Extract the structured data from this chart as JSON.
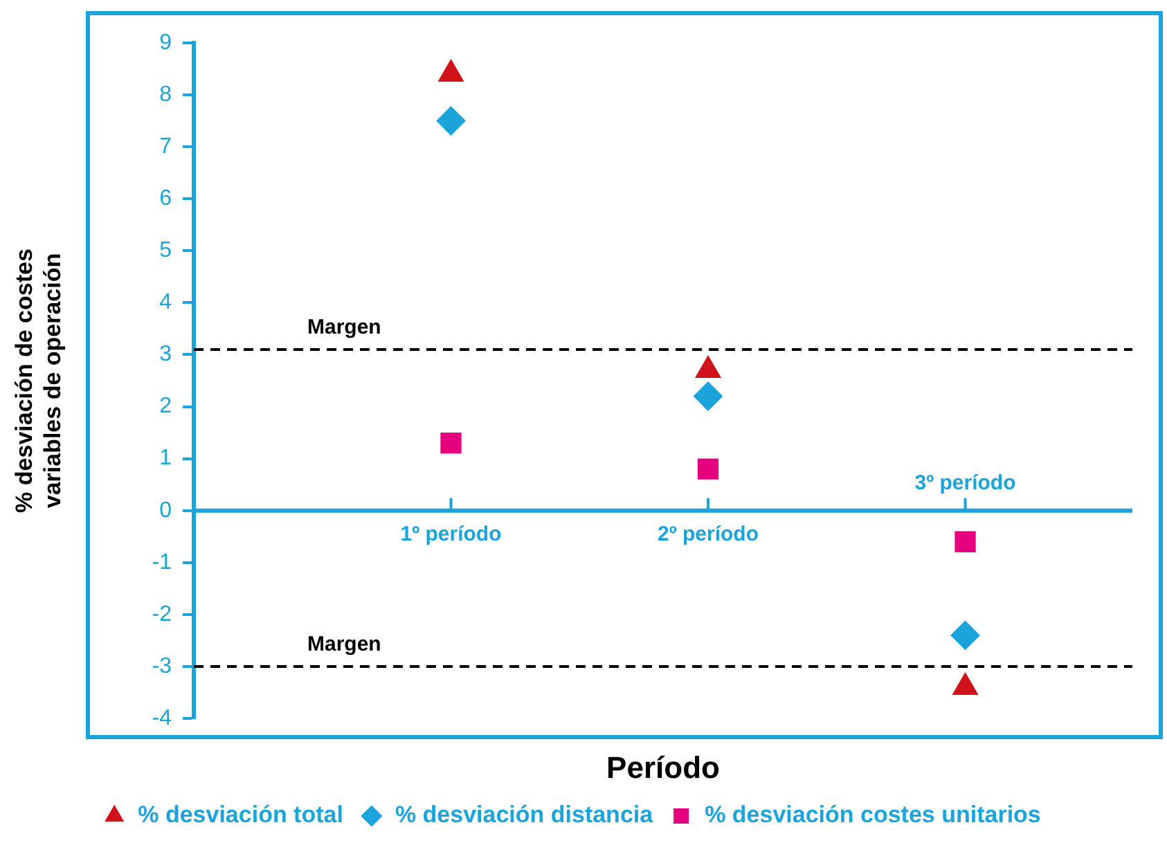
{
  "chart_data": {
    "type": "scatter",
    "xlabel": "Período",
    "ylabel": "% desviación de costes variables de operación",
    "categories": [
      "1º período",
      "2º período",
      "3º período"
    ],
    "series": [
      {
        "name": "% desviación total",
        "color": "#d0121b",
        "marker": "triangle",
        "values": [
          8.4,
          2.7,
          -3.4
        ]
      },
      {
        "name": "% desviación distancia",
        "color": "#1ba3dc",
        "marker": "diamond",
        "values": [
          7.5,
          2.2,
          -2.4
        ]
      },
      {
        "name": "% desviación costes unitarios",
        "color": "#e5007e",
        "marker": "square",
        "values": [
          1.3,
          0.8,
          -0.6
        ]
      }
    ],
    "ylim": [
      -4,
      9
    ],
    "yticks": [
      -4,
      -3,
      -2,
      -1,
      0,
      1,
      2,
      3,
      4,
      5,
      6,
      7,
      8,
      9
    ],
    "ref_lines": [
      {
        "axis": "y",
        "value": 3.1,
        "label": "Margen",
        "color": "#000000",
        "line_style": "dashed"
      },
      {
        "axis": "y",
        "value": -3,
        "label": "Margen",
        "color": "#000000",
        "line_style": "dashed"
      }
    ],
    "grid": false,
    "legend": "bottom"
  }
}
